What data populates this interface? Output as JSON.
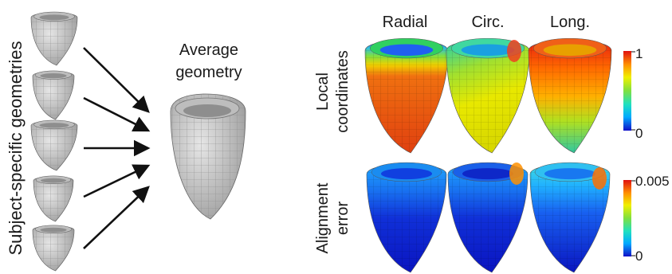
{
  "left_panel": {
    "vertical_label": "Subject-specific geometries",
    "average_label_line1": "Average",
    "average_label_line2": "geometry",
    "mesh_color": "#c8c8c8",
    "mesh_line_color": "#8a8a8a"
  },
  "right_panel": {
    "columns": [
      "Radial",
      "Circ.",
      "Long."
    ],
    "rows": [
      {
        "label_line1": "Local",
        "label_line2": "coordinates",
        "scale_max": "1",
        "scale_min": "0"
      },
      {
        "label_line1": "Alignment",
        "label_line2": "error",
        "scale_max": "0.005",
        "scale_min": "0"
      }
    ],
    "colormap": [
      "#1010c8",
      "#00aaff",
      "#20e0c0",
      "#7fe040",
      "#f0f000",
      "#ff9000",
      "#e01010"
    ]
  }
}
